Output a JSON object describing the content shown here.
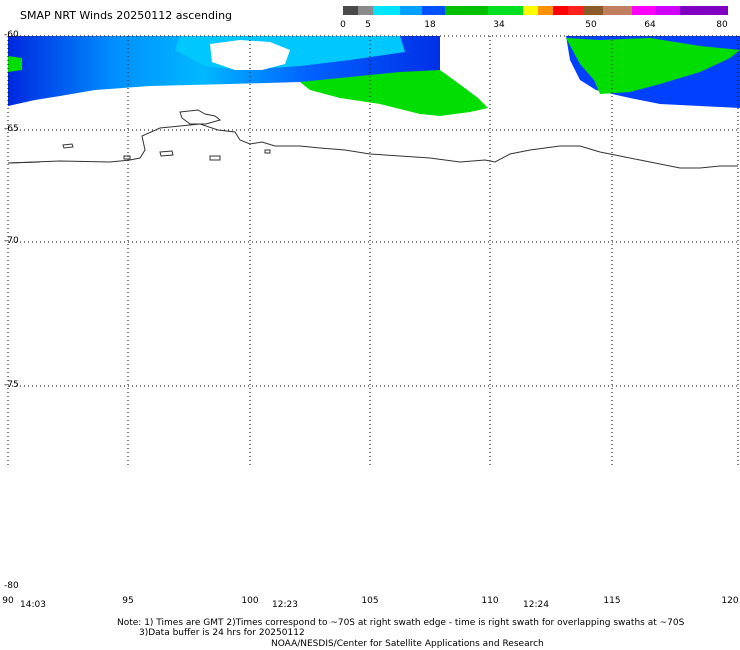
{
  "title": "SMAP NRT Winds 20250112 ascending",
  "colorbar": {
    "labels": [
      "0",
      "5",
      "18",
      "34",
      "50",
      "64",
      "80"
    ],
    "colors": [
      "#4a4a4a",
      "#8a8a8a",
      "#00e5ff",
      "#00a0ff",
      "#0050ff",
      "#00c000",
      "#00e020",
      "#ffff00",
      "#ff9000",
      "#ff0000",
      "#ff2020",
      "#8b5a2b",
      "#c08060",
      "#ff00ff",
      "#d000ff",
      "#8000c0"
    ]
  },
  "lat_labels": [
    "-60",
    "-65",
    "-70",
    "-75",
    "-80"
  ],
  "lon_labels": [
    "90",
    "95",
    "100",
    "105",
    "110",
    "115",
    "120"
  ],
  "times": [
    "14:03",
    "12:23",
    "12:24"
  ],
  "note": {
    "line1": "Note: 1) Times are GMT 2)Times correspond to ~70S at right swath edge - time is right swath for overlapping swaths at ~70S",
    "line2": "3)Data buffer is 24 hrs for 20250112",
    "line3": "NOAA/NESDIS/Center for Satellite Applications and Research"
  },
  "colors": {
    "blue": "#0033ee",
    "light_blue": "#00b0ff",
    "green": "#00dd00",
    "coast": "#333333"
  }
}
